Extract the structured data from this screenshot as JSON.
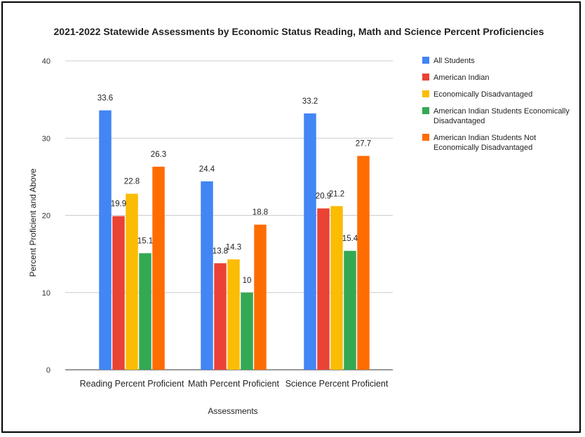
{
  "chart_data": {
    "type": "bar",
    "title": "2021-2022 Statewide Assessments by Economic Status Reading, Math and Science Percent Proficiencies",
    "xlabel": "Assessments",
    "ylabel": "Percent Proficient and Above",
    "ylim": [
      0,
      40
    ],
    "yticks": [
      "0",
      "10",
      "20",
      "30",
      "40"
    ],
    "grid": true,
    "legend_position": "right",
    "categories": [
      "Reading Percent Proficient",
      "Math Percent Proficient",
      "Science Percent Proficient"
    ],
    "series": [
      {
        "name": "All Students",
        "color": "#4285F4",
        "values": [
          33.6,
          24.4,
          33.2
        ],
        "labels": [
          "33.6",
          "24.4",
          "33.2"
        ]
      },
      {
        "name": "American Indian",
        "color": "#EA4335",
        "values": [
          19.9,
          13.8,
          20.9
        ],
        "labels": [
          "19.9",
          "13.8",
          "20.9"
        ]
      },
      {
        "name": "Economically Disadvantaged",
        "color": "#FBBC04",
        "values": [
          22.8,
          14.3,
          21.2
        ],
        "labels": [
          "22.8",
          "14.3",
          "21.2"
        ]
      },
      {
        "name": "American Indian Students Economically Disadvantaged",
        "legend_lines": [
          "American Indian Students Economically",
          "Disadvantaged"
        ],
        "color": "#34A853",
        "values": [
          15.1,
          10,
          15.4
        ],
        "labels": [
          "15.1",
          "10",
          "15.4"
        ]
      },
      {
        "name": "American Indian Students Not Economically Disadvantaged",
        "legend_lines": [
          "American Indian Students Not",
          "Economically Disadvantaged"
        ],
        "color": "#FF6D01",
        "values": [
          26.3,
          18.8,
          27.7
        ],
        "labels": [
          "26.3",
          "18.8",
          "27.7"
        ]
      }
    ]
  }
}
